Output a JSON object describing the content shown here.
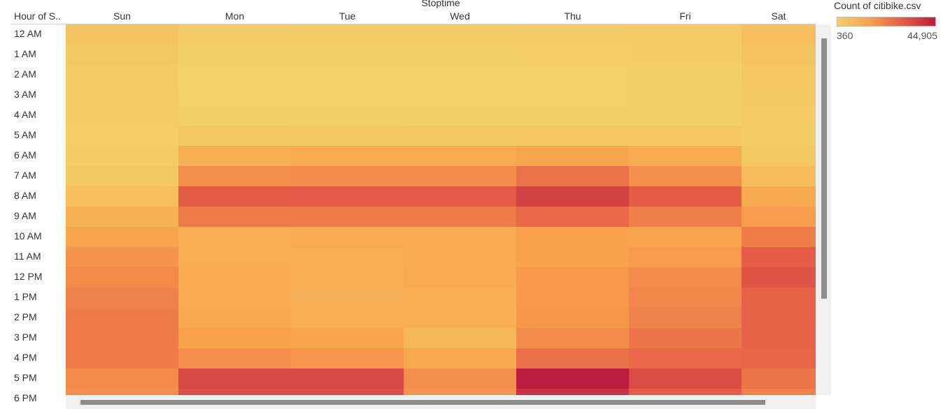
{
  "chart_data": {
    "type": "heatmap",
    "column_title": "Stoptime",
    "row_title": "Hour of S..",
    "columns": [
      "Sun",
      "Mon",
      "Tue",
      "Wed",
      "Thu",
      "Fri",
      "Sat"
    ],
    "rows": [
      "12 AM",
      "1 AM",
      "2 AM",
      "3 AM",
      "4 AM",
      "5 AM",
      "6 AM",
      "7 AM",
      "8 AM",
      "9 AM",
      "10 AM",
      "11 AM",
      "12 PM",
      "1 PM",
      "2 PM",
      "3 PM",
      "4 PM",
      "5 PM",
      "6 PM"
    ],
    "values": [
      [
        4000,
        1500,
        1200,
        1200,
        1800,
        2500,
        6000
      ],
      [
        3000,
        800,
        600,
        600,
        900,
        1300,
        4500
      ],
      [
        2200,
        500,
        400,
        400,
        500,
        800,
        3500
      ],
      [
        1500,
        400,
        360,
        360,
        400,
        600,
        2600
      ],
      [
        1300,
        600,
        600,
        600,
        600,
        800,
        2000
      ],
      [
        1100,
        3000,
        2800,
        3000,
        3200,
        3200,
        1500
      ],
      [
        1500,
        11000,
        12000,
        12000,
        13500,
        11500,
        3000
      ],
      [
        3000,
        19000,
        19500,
        19500,
        25000,
        19000,
        7000
      ],
      [
        6000,
        30000,
        30500,
        30500,
        36000,
        30000,
        12500
      ],
      [
        10000,
        23000,
        23500,
        23500,
        27500,
        22500,
        16000
      ],
      [
        13500,
        11000,
        11500,
        11500,
        14500,
        14000,
        23000
      ],
      [
        18000,
        11000,
        11000,
        11500,
        14500,
        16000,
        30000
      ],
      [
        20000,
        12000,
        11000,
        12000,
        17000,
        20000,
        32000
      ],
      [
        22000,
        12000,
        10500,
        11000,
        17000,
        21000,
        29000
      ],
      [
        23000,
        12500,
        11000,
        11000,
        17500,
        22000,
        29000
      ],
      [
        23000,
        14500,
        13500,
        8500,
        19500,
        24500,
        28500
      ],
      [
        23000,
        19000,
        17500,
        12500,
        25500,
        27500,
        28000
      ],
      [
        20000,
        35000,
        35000,
        19000,
        44905,
        34000,
        24500
      ],
      [
        19000,
        33000,
        33000,
        18000,
        40000,
        30000,
        22000
      ]
    ],
    "legend": {
      "title": "Count of citibike.csv",
      "min_label": "360",
      "max_label": "44,905",
      "min": 360,
      "max": 44905,
      "colors": [
        "#f3d06a",
        "#f8a04c",
        "#e55c47",
        "#bb1d3c"
      ]
    }
  }
}
